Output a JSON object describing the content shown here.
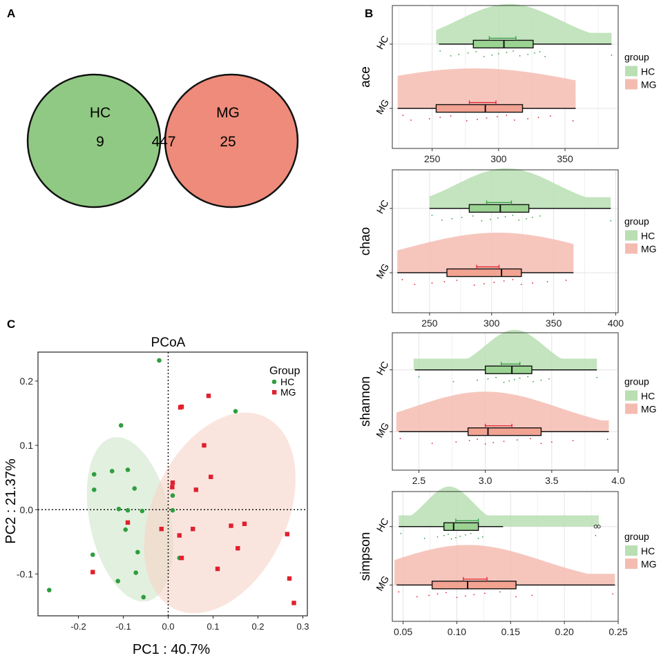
{
  "panel_labels": {
    "a": "A",
    "b": "B",
    "c": "C"
  },
  "colors": {
    "hc": "#2e9e3f",
    "mg": "#e0202d",
    "hc_fill": "#90c983",
    "mg_fill": "#ee8b7a",
    "overlap": "#c4795a"
  },
  "venn": {
    "set1_name": "HC",
    "set2_name": "MG",
    "only_set1": "9",
    "intersection": "447",
    "only_set2": "25"
  },
  "raincloud_legend": {
    "title": "group",
    "items": [
      "HC",
      "MG"
    ]
  },
  "chart_data": [
    {
      "type": "raincloud",
      "id": "ace",
      "ylabel": "ace",
      "groups": [
        "HC",
        "MG"
      ],
      "xlim": [
        220,
        390
      ],
      "xticks": [
        "250",
        "300",
        "350"
      ],
      "xtick_values": [
        250,
        300,
        350
      ],
      "box": {
        "HC": {
          "min": 255,
          "q1": 281,
          "median": 304,
          "q3": 326,
          "max": 385,
          "mean": 303,
          "ci": [
            293,
            313
          ]
        },
        "MG": {
          "min": 224,
          "q1": 253,
          "median": 290,
          "q3": 318,
          "max": 358,
          "mean": 288,
          "ci": [
            278,
            298
          ]
        }
      },
      "density": {
        "HC": {
          "range": [
            253,
            385
          ],
          "peak": 308,
          "sd": 38
        },
        "MG": {
          "range": [
            224,
            358
          ],
          "peak": 282,
          "sd": 90
        }
      },
      "points": {
        "HC": [
          256,
          264,
          270,
          277,
          283,
          289,
          295,
          300,
          306,
          311,
          316,
          322,
          327,
          331,
          335,
          385
        ],
        "MG": [
          228,
          234,
          248,
          256,
          264,
          276,
          284,
          291,
          299,
          306,
          312,
          322,
          330,
          339,
          356
        ]
      }
    },
    {
      "type": "raincloud",
      "id": "chao",
      "ylabel": "chao",
      "groups": [
        "HC",
        "MG"
      ],
      "xlim": [
        220,
        402
      ],
      "xticks": [
        "250",
        "300",
        "350",
        "400"
      ],
      "xtick_values": [
        250,
        300,
        350,
        400
      ],
      "box": {
        "HC": {
          "min": 250,
          "q1": 282,
          "median": 307,
          "q3": 330,
          "max": 396,
          "mean": 306,
          "ci": [
            296,
            316
          ]
        },
        "MG": {
          "min": 224,
          "q1": 264,
          "median": 308,
          "q3": 324,
          "max": 366,
          "mean": 298,
          "ci": [
            288,
            306
          ]
        }
      },
      "density": {
        "HC": {
          "range": [
            250,
            396
          ],
          "peak": 312,
          "sd": 40
        },
        "MG": {
          "range": [
            224,
            366
          ],
          "peak": 305,
          "sd": 75
        }
      },
      "points": {
        "HC": [
          252,
          260,
          268,
          276,
          285,
          292,
          299,
          305,
          311,
          317,
          322,
          328,
          333,
          339,
          396
        ],
        "MG": [
          228,
          238,
          252,
          262,
          272,
          286,
          294,
          302,
          310,
          317,
          324,
          333,
          345,
          360
        ]
      }
    },
    {
      "type": "raincloud",
      "id": "shannon",
      "ylabel": "shannon",
      "groups": [
        "HC",
        "MG"
      ],
      "xlim": [
        2.3,
        4.0
      ],
      "xticks": [
        "2.5",
        "3.0",
        "3.5",
        "4.0"
      ],
      "xtick_values": [
        2.5,
        3.0,
        3.5,
        4.0
      ],
      "box": {
        "HC": {
          "min": 2.47,
          "q1": 3.0,
          "median": 3.2,
          "q3": 3.35,
          "max": 3.84,
          "mean": 3.18,
          "ci": [
            3.12,
            3.26
          ]
        },
        "MG": {
          "min": 2.35,
          "q1": 2.87,
          "median": 3.02,
          "q3": 3.42,
          "max": 3.93,
          "mean": 3.1,
          "ci": [
            3.0,
            3.2
          ]
        }
      },
      "density": {
        "HC": {
          "range": [
            2.46,
            3.84
          ],
          "peak": 3.22,
          "sd": 0.22
        },
        "MG": {
          "range": [
            2.33,
            3.93
          ],
          "peak": 3.0,
          "sd": 0.55
        }
      },
      "points": {
        "HC": [
          2.5,
          2.76,
          2.94,
          3.02,
          3.08,
          3.14,
          3.18,
          3.22,
          3.26,
          3.32,
          3.36,
          3.42,
          3.48,
          3.84
        ],
        "MG": [
          2.36,
          2.6,
          2.78,
          2.88,
          2.94,
          3.0,
          3.06,
          3.14,
          3.24,
          3.34,
          3.42,
          3.5,
          3.66,
          3.92
        ]
      }
    },
    {
      "type": "raincloud",
      "id": "simpson",
      "ylabel": "simpson",
      "groups": [
        "HC",
        "MG"
      ],
      "xlim": [
        0.04,
        0.25
      ],
      "xticks": [
        "0.05",
        "0.10",
        "0.15",
        "0.20",
        "0.25"
      ],
      "xtick_values": [
        0.05,
        0.1,
        0.15,
        0.2,
        0.25
      ],
      "box": {
        "HC": {
          "min": 0.046,
          "q1": 0.088,
          "median": 0.097,
          "q3": 0.12,
          "max": 0.143,
          "mean": 0.11,
          "ci": [
            0.099,
            0.12
          ],
          "outliers": [
            0.229,
            0.232
          ]
        },
        "MG": {
          "min": 0.044,
          "q1": 0.077,
          "median": 0.11,
          "q3": 0.155,
          "max": 0.247,
          "mean": 0.117,
          "ci": [
            0.106,
            0.128
          ]
        }
      },
      "density": {
        "HC": {
          "range": [
            0.046,
            0.232
          ],
          "peak": 0.093,
          "sd": 0.022,
          "bump": 0.228
        },
        "MG": {
          "range": [
            0.042,
            0.247
          ],
          "peak": 0.11,
          "sd": 0.07
        }
      },
      "points": {
        "HC": [
          0.048,
          0.07,
          0.082,
          0.088,
          0.092,
          0.095,
          0.099,
          0.103,
          0.108,
          0.113,
          0.12,
          0.124,
          0.229
        ],
        "MG": [
          0.046,
          0.063,
          0.074,
          0.082,
          0.09,
          0.1,
          0.108,
          0.116,
          0.126,
          0.14,
          0.155,
          0.17,
          0.245
        ]
      }
    },
    {
      "type": "scatter",
      "id": "pcoa",
      "title": "PCoA",
      "xlabel": "PC1 : 40.7%",
      "ylabel": "PC2 : 21.37%",
      "xlim": [
        -0.29,
        0.31
      ],
      "ylim": [
        -0.165,
        0.245
      ],
      "xticks": [
        "-0.2",
        "-0.1",
        "0.0",
        "0.1",
        "0.2",
        "0.3"
      ],
      "xtick_values": [
        -0.2,
        -0.1,
        0.0,
        0.1,
        0.2,
        0.3
      ],
      "yticks": [
        "-0.1",
        "0.0",
        "0.1",
        "0.2"
      ],
      "ytick_values": [
        -0.1,
        0.0,
        0.1,
        0.2
      ],
      "legend": {
        "title": "Group",
        "items": [
          "HC",
          "MG"
        ]
      },
      "ellipses": [
        {
          "group": "HC",
          "center": [
            -0.085,
            -0.015
          ],
          "semi_axes": [
            0.09,
            0.13
          ],
          "angle_deg": -12
        },
        {
          "group": "MG",
          "center": [
            0.115,
            -0.005
          ],
          "semi_axes": [
            0.15,
            0.165
          ],
          "angle_deg": 25
        }
      ],
      "series": [
        {
          "name": "HC",
          "points": [
            [
              -0.02,
              0.232
            ],
            [
              0.15,
              0.153
            ],
            [
              -0.105,
              0.131
            ],
            [
              -0.165,
              0.055
            ],
            [
              -0.125,
              0.06
            ],
            [
              -0.09,
              0.062
            ],
            [
              -0.075,
              0.033
            ],
            [
              -0.165,
              0.031
            ],
            [
              -0.11,
              0.001
            ],
            [
              -0.09,
              -0.001
            ],
            [
              -0.058,
              -0.002
            ],
            [
              0.01,
              -0.001
            ],
            [
              -0.095,
              -0.031
            ],
            [
              -0.068,
              -0.066
            ],
            [
              -0.168,
              -0.07
            ],
            [
              -0.072,
              -0.098
            ],
            [
              -0.112,
              -0.111
            ],
            [
              -0.055,
              -0.136
            ],
            [
              -0.265,
              -0.125
            ],
            [
              0.01,
              0.022
            ],
            [
              0.025,
              -0.075
            ]
          ]
        },
        {
          "name": "MG",
          "points": [
            [
              0.09,
              0.177
            ],
            [
              0.027,
              0.159
            ],
            [
              0.03,
              0.16
            ],
            [
              0.08,
              0.1
            ],
            [
              0.095,
              0.051
            ],
            [
              0.01,
              0.042
            ],
            [
              0.009,
              0.035
            ],
            [
              0.062,
              0.031
            ],
            [
              -0.09,
              -0.02
            ],
            [
              -0.015,
              -0.03
            ],
            [
              0.055,
              -0.03
            ],
            [
              0.14,
              -0.025
            ],
            [
              0.17,
              -0.022
            ],
            [
              0.025,
              -0.04
            ],
            [
              0.265,
              -0.038
            ],
            [
              0.155,
              -0.06
            ],
            [
              0.03,
              -0.075
            ],
            [
              0.11,
              -0.092
            ],
            [
              -0.168,
              -0.097
            ],
            [
              0.27,
              -0.107
            ],
            [
              0.28,
              -0.145
            ]
          ]
        }
      ]
    }
  ]
}
